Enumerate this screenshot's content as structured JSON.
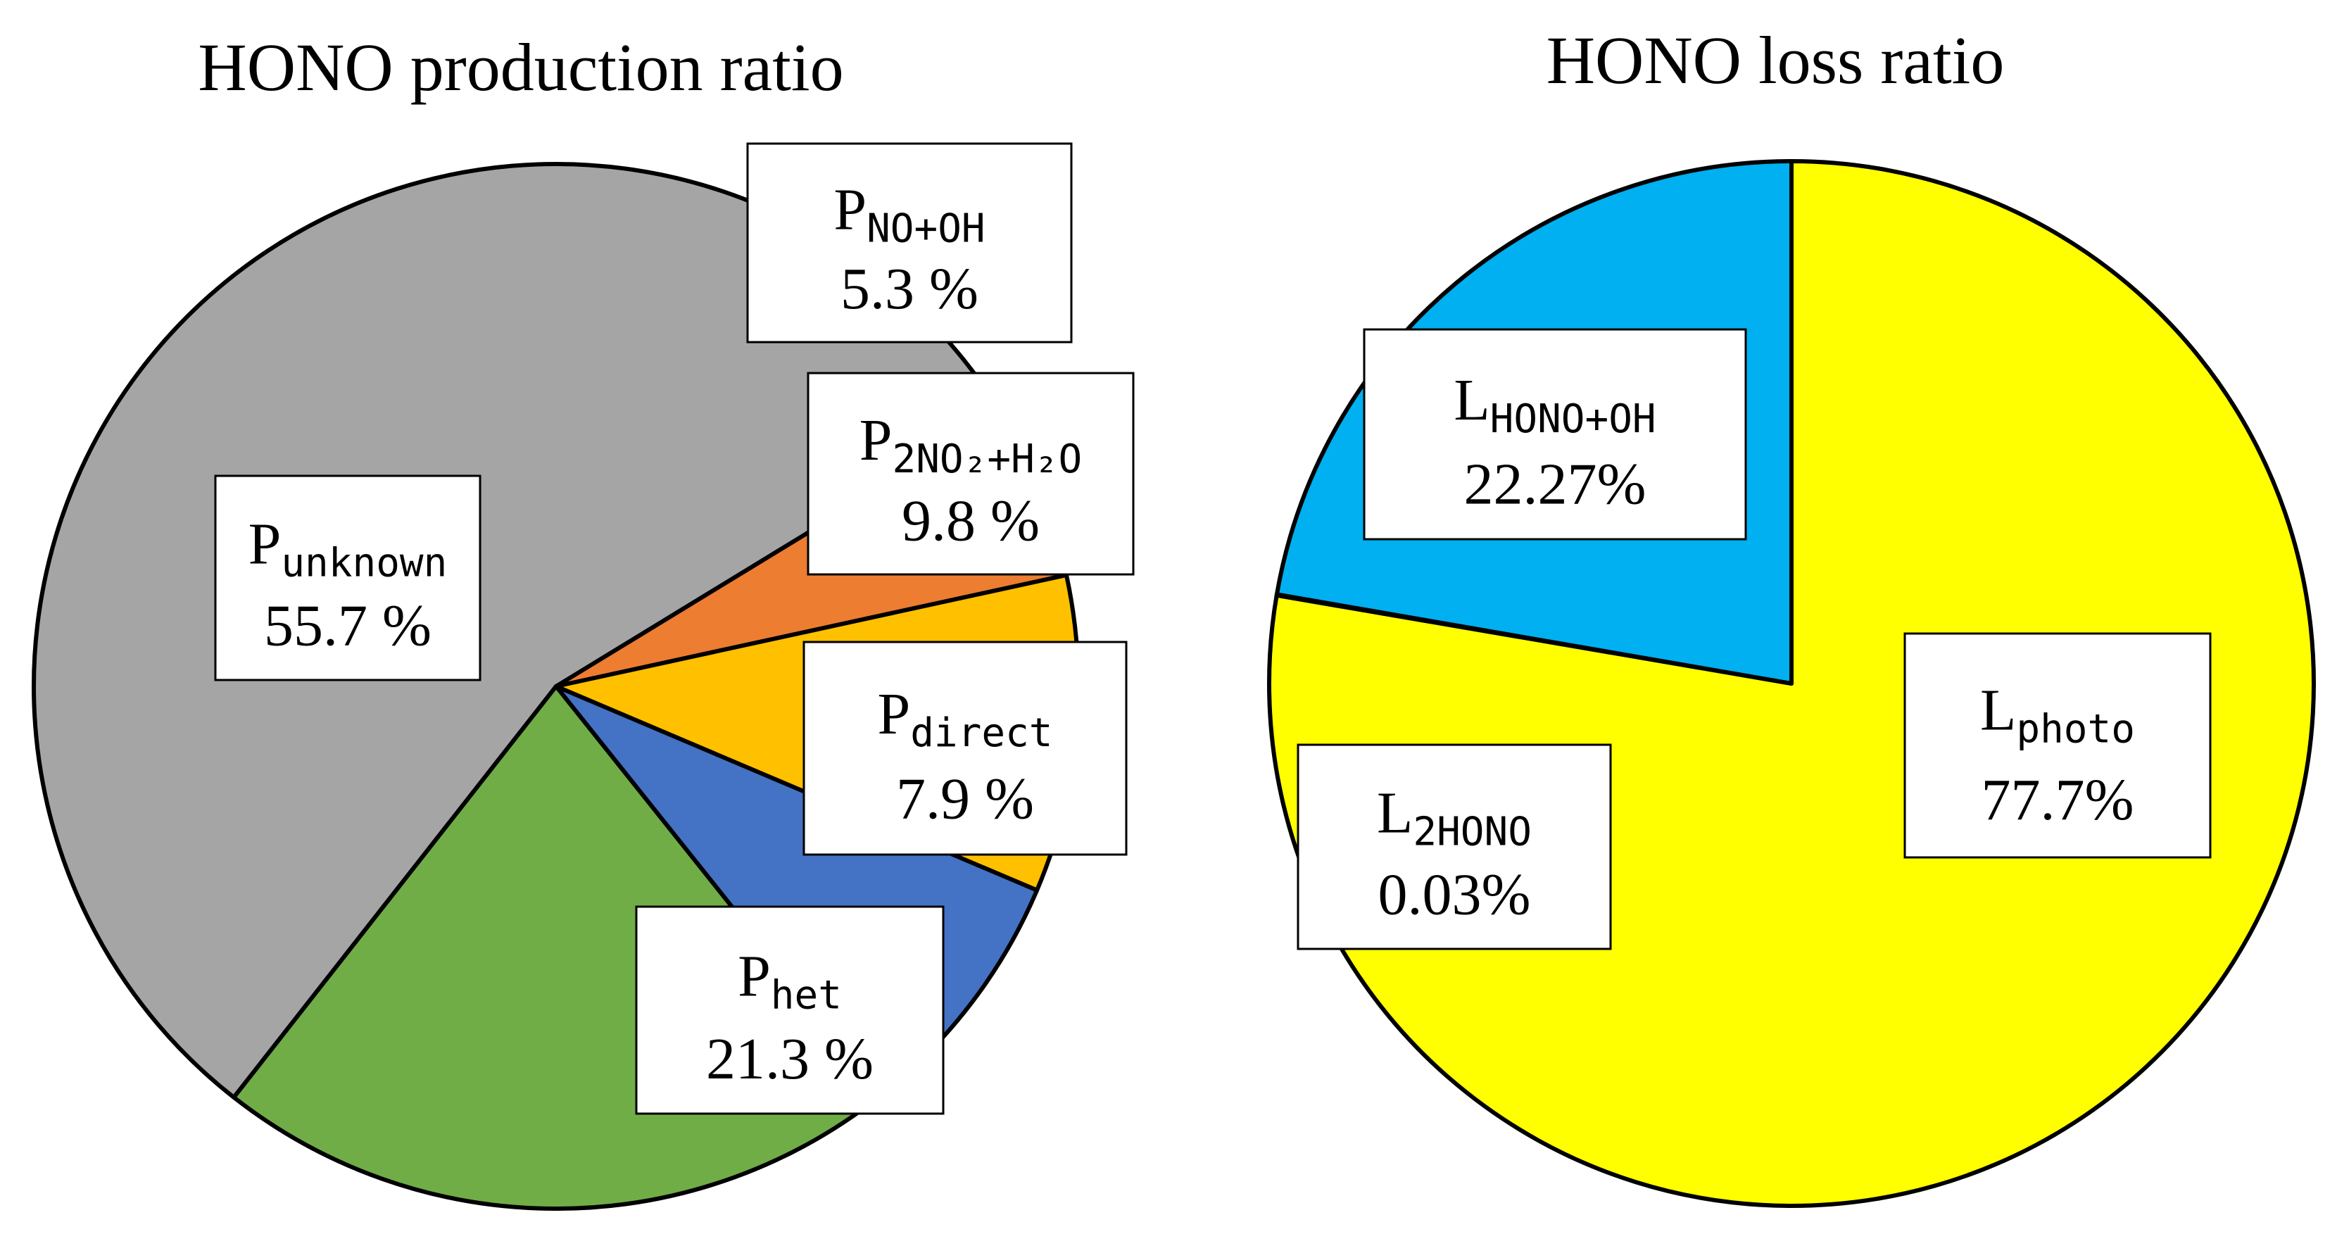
{
  "chart_data": [
    {
      "type": "pie",
      "title": "HONO production ratio",
      "slices": [
        {
          "main": "P",
          "sub": "unknown",
          "pct_label": "55.7 %",
          "value": 55.7,
          "color": "#a5a5a5"
        },
        {
          "main": "P",
          "sub": "NO+OH",
          "pct_label": "5.3 %",
          "value": 5.3,
          "color": "#ed7d31"
        },
        {
          "main": "P",
          "sub": "2NO₂+H₂O",
          "pct_label": "9.8 %",
          "value": 9.8,
          "color": "#ffc000"
        },
        {
          "main": "P",
          "sub": "direct",
          "pct_label": "7.9 %",
          "value": 7.9,
          "color": "#4472c4"
        },
        {
          "main": "P",
          "sub": "het",
          "pct_label": "21.3 %",
          "value": 21.3,
          "color": "#70ad47"
        }
      ]
    },
    {
      "type": "pie",
      "title": "HONO loss ratio",
      "slices": [
        {
          "main": "L",
          "sub": "photo",
          "pct_label": "77.7%",
          "value": 77.7,
          "color": "#ffff00"
        },
        {
          "main": "L",
          "sub": "2HONO",
          "pct_label": "0.03%",
          "value": 0.03,
          "color": "#00b0f0"
        },
        {
          "main": "L",
          "sub": "HONO+OH",
          "pct_label": "22.27%",
          "value": 22.27,
          "color": "#00b0f0"
        }
      ]
    }
  ]
}
